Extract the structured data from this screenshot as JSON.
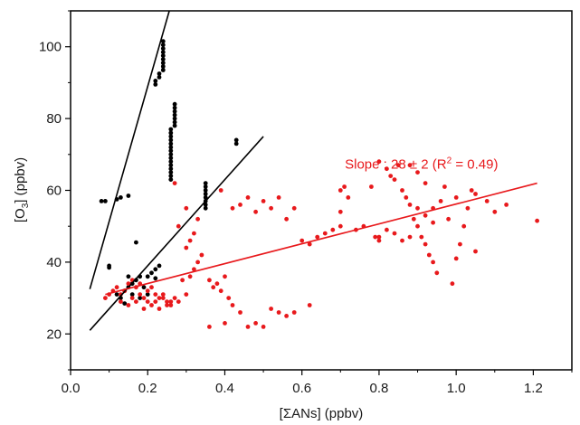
{
  "chart_data": {
    "type": "scatter",
    "xlabel_main": "[ΣANs] (ppbv)",
    "ylabel_parts": {
      "prefix": "[O",
      "sub": "3",
      "suffix": "] (ppbv)"
    },
    "xlim": [
      0.0,
      1.3
    ],
    "ylim": [
      10,
      110
    ],
    "x_ticks": [
      0.0,
      0.2,
      0.4,
      0.6,
      0.8,
      1.0,
      1.2
    ],
    "x_tick_labels": [
      "0.0",
      "0.2",
      "0.4",
      "0.6",
      "0.8",
      "1.0",
      "1.2"
    ],
    "y_ticks": [
      20,
      40,
      60,
      80,
      100
    ],
    "y_tick_labels": [
      "20",
      "40",
      "60",
      "80",
      "100"
    ],
    "grid": false,
    "annotation": {
      "prefix": "Slope : 28 ± 2 (R",
      "sup": "2",
      "suffix": " = 0.49)",
      "color": "#e8191c",
      "at": [
        0.91,
        66
      ]
    },
    "fit_lines": [
      {
        "name": "black-steep-fit",
        "color": "#000000",
        "x": [
          0.05,
          0.256
        ],
        "y": [
          32.5,
          110
        ]
      },
      {
        "name": "black-fit",
        "color": "#000000",
        "x": [
          0.05,
          0.5
        ],
        "y": [
          21,
          75
        ]
      },
      {
        "name": "red-fit",
        "color": "#e8191c",
        "x": [
          0.09,
          1.21
        ],
        "y": [
          31,
          62
        ]
      }
    ],
    "series": [
      {
        "color": "#000000",
        "points": [
          [
            0.08,
            57
          ],
          [
            0.09,
            57
          ],
          [
            0.1,
            38.5
          ],
          [
            0.1,
            39
          ],
          [
            0.12,
            57.5
          ],
          [
            0.13,
            58
          ],
          [
            0.15,
            58.5
          ],
          [
            0.17,
            45.5
          ],
          [
            0.22,
            35.5
          ],
          [
            0.13,
            30
          ],
          [
            0.14,
            32
          ],
          [
            0.15,
            33
          ],
          [
            0.16,
            34
          ],
          [
            0.17,
            35
          ],
          [
            0.18,
            36
          ],
          [
            0.19,
            33
          ],
          [
            0.2,
            36
          ],
          [
            0.21,
            37
          ],
          [
            0.22,
            38
          ],
          [
            0.23,
            39
          ],
          [
            0.16,
            31
          ],
          [
            0.18,
            30
          ],
          [
            0.2,
            31
          ],
          [
            0.14,
            28.5
          ],
          [
            0.12,
            31
          ],
          [
            0.15,
            36
          ],
          [
            0.22,
            89.5
          ],
          [
            0.22,
            90.5
          ],
          [
            0.23,
            91.5
          ],
          [
            0.23,
            92.5
          ],
          [
            0.24,
            93.5
          ],
          [
            0.24,
            94.5
          ],
          [
            0.24,
            95.5
          ],
          [
            0.24,
            96.5
          ],
          [
            0.24,
            97.5
          ],
          [
            0.24,
            98.5
          ],
          [
            0.24,
            99.5
          ],
          [
            0.24,
            100.5
          ],
          [
            0.24,
            101.5
          ],
          [
            0.26,
            63
          ],
          [
            0.26,
            64
          ],
          [
            0.26,
            65
          ],
          [
            0.26,
            66
          ],
          [
            0.26,
            67
          ],
          [
            0.26,
            68
          ],
          [
            0.26,
            69
          ],
          [
            0.26,
            70
          ],
          [
            0.26,
            71
          ],
          [
            0.26,
            72
          ],
          [
            0.26,
            73
          ],
          [
            0.26,
            74
          ],
          [
            0.26,
            75
          ],
          [
            0.26,
            76
          ],
          [
            0.26,
            77
          ],
          [
            0.27,
            78
          ],
          [
            0.27,
            79
          ],
          [
            0.27,
            80
          ],
          [
            0.27,
            81
          ],
          [
            0.27,
            82
          ],
          [
            0.27,
            83
          ],
          [
            0.27,
            84
          ],
          [
            0.35,
            55
          ],
          [
            0.35,
            56
          ],
          [
            0.35,
            57
          ],
          [
            0.35,
            58
          ],
          [
            0.35,
            59
          ],
          [
            0.35,
            60
          ],
          [
            0.35,
            61
          ],
          [
            0.35,
            62
          ],
          [
            0.43,
            73
          ],
          [
            0.43,
            74
          ]
        ]
      },
      {
        "color": "#e8191c",
        "points": [
          [
            0.09,
            30
          ],
          [
            0.1,
            31
          ],
          [
            0.11,
            32
          ],
          [
            0.12,
            33
          ],
          [
            0.13,
            31
          ],
          [
            0.14,
            32
          ],
          [
            0.15,
            34
          ],
          [
            0.16,
            35
          ],
          [
            0.17,
            33
          ],
          [
            0.18,
            34
          ],
          [
            0.19,
            30
          ],
          [
            0.2,
            32
          ],
          [
            0.21,
            33
          ],
          [
            0.22,
            29
          ],
          [
            0.23,
            30
          ],
          [
            0.24,
            31
          ],
          [
            0.25,
            28
          ],
          [
            0.26,
            29
          ],
          [
            0.27,
            30
          ],
          [
            0.15,
            28
          ],
          [
            0.17,
            29
          ],
          [
            0.19,
            27
          ],
          [
            0.21,
            28
          ],
          [
            0.23,
            27
          ],
          [
            0.25,
            29
          ],
          [
            0.13,
            29
          ],
          [
            0.16,
            30
          ],
          [
            0.18,
            31
          ],
          [
            0.2,
            29
          ],
          [
            0.22,
            31
          ],
          [
            0.24,
            30
          ],
          [
            0.26,
            28
          ],
          [
            0.28,
            29
          ],
          [
            0.3,
            31
          ],
          [
            0.29,
            35
          ],
          [
            0.31,
            36
          ],
          [
            0.32,
            38
          ],
          [
            0.33,
            40
          ],
          [
            0.34,
            42
          ],
          [
            0.3,
            44
          ],
          [
            0.31,
            46
          ],
          [
            0.32,
            48
          ],
          [
            0.28,
            50
          ],
          [
            0.33,
            52
          ],
          [
            0.3,
            55
          ],
          [
            0.27,
            62
          ],
          [
            0.36,
            35
          ],
          [
            0.37,
            33
          ],
          [
            0.38,
            34
          ],
          [
            0.39,
            32
          ],
          [
            0.4,
            36
          ],
          [
            0.41,
            30
          ],
          [
            0.42,
            28
          ],
          [
            0.36,
            22
          ],
          [
            0.4,
            23
          ],
          [
            0.44,
            26
          ],
          [
            0.46,
            22
          ],
          [
            0.48,
            23
          ],
          [
            0.5,
            22
          ],
          [
            0.52,
            27
          ],
          [
            0.54,
            26
          ],
          [
            0.56,
            25
          ],
          [
            0.58,
            26
          ],
          [
            0.62,
            28
          ],
          [
            0.39,
            60
          ],
          [
            0.42,
            55
          ],
          [
            0.44,
            56
          ],
          [
            0.46,
            58
          ],
          [
            0.48,
            54
          ],
          [
            0.5,
            57
          ],
          [
            0.52,
            55
          ],
          [
            0.54,
            58
          ],
          [
            0.56,
            52
          ],
          [
            0.58,
            55
          ],
          [
            0.6,
            46
          ],
          [
            0.62,
            45
          ],
          [
            0.64,
            47
          ],
          [
            0.66,
            48
          ],
          [
            0.68,
            49
          ],
          [
            0.7,
            50
          ],
          [
            0.7,
            54
          ],
          [
            0.7,
            60
          ],
          [
            0.71,
            61
          ],
          [
            0.72,
            58
          ],
          [
            0.74,
            49
          ],
          [
            0.76,
            50
          ],
          [
            0.78,
            61
          ],
          [
            0.79,
            47
          ],
          [
            0.8,
            46
          ],
          [
            0.8,
            68
          ],
          [
            0.82,
            66
          ],
          [
            0.83,
            64
          ],
          [
            0.84,
            63
          ],
          [
            0.85,
            67
          ],
          [
            0.86,
            60
          ],
          [
            0.87,
            58
          ],
          [
            0.88,
            56
          ],
          [
            0.88,
            67
          ],
          [
            0.89,
            52
          ],
          [
            0.9,
            50
          ],
          [
            0.9,
            65
          ],
          [
            0.91,
            47
          ],
          [
            0.92,
            45
          ],
          [
            0.92,
            62
          ],
          [
            0.93,
            42
          ],
          [
            0.94,
            40
          ],
          [
            0.94,
            55
          ],
          [
            0.95,
            37
          ],
          [
            0.96,
            57
          ],
          [
            0.97,
            61
          ],
          [
            0.98,
            52
          ],
          [
            0.99,
            34
          ],
          [
            1.0,
            58
          ],
          [
            1.0,
            41
          ],
          [
            1.01,
            45
          ],
          [
            1.02,
            50
          ],
          [
            1.03,
            55
          ],
          [
            1.04,
            60
          ],
          [
            1.05,
            59
          ],
          [
            1.05,
            43
          ],
          [
            1.08,
            57
          ],
          [
            1.1,
            54
          ],
          [
            1.13,
            56
          ],
          [
            1.21,
            51.5
          ],
          [
            0.8,
            47
          ],
          [
            0.82,
            49
          ],
          [
            0.84,
            48
          ],
          [
            0.86,
            46
          ],
          [
            0.88,
            47
          ],
          [
            0.9,
            55
          ],
          [
            0.92,
            53
          ],
          [
            0.94,
            51
          ]
        ]
      }
    ]
  }
}
